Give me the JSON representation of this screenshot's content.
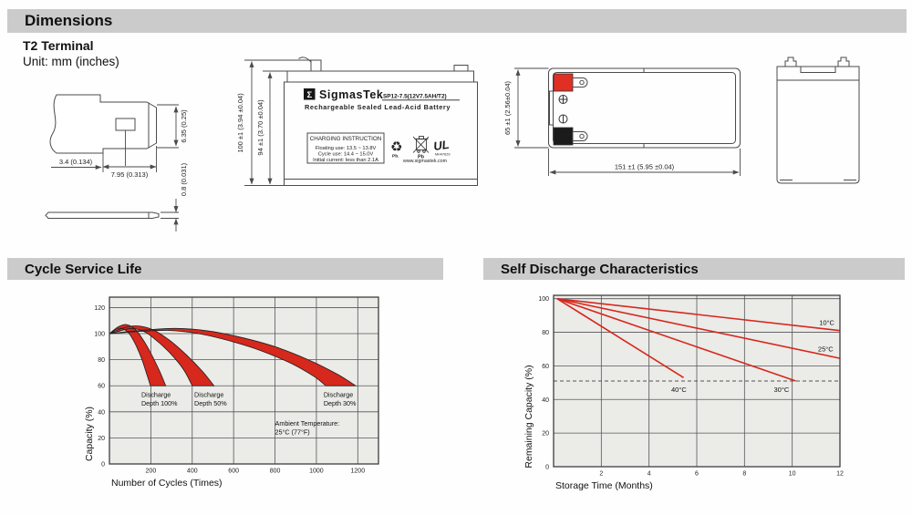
{
  "page": {
    "header": "Dimensions",
    "terminal_type": "T2 Terminal",
    "unit_note": "Unit: mm (inches)",
    "section1_header": "Cycle Service Life",
    "section2_header": "Self Discharge Characteristics",
    "accent_red": "#d6281c",
    "header_bar_gray": "#cbcbcb"
  },
  "drawings": {
    "terminal": {
      "dim_offset": "3.4 (0.134)",
      "dim_width": "7.95 (0.313)",
      "dim_height": "6.35 (0.25)",
      "dim_thickness": "0.8 (0.031)"
    },
    "front_view": {
      "dim_total_height": "100 ±1 (3.94 ±0.04)",
      "dim_case_height": "94 ±1 (3.70 ±0.04)",
      "brand_sigma": "Σ",
      "brand": "SigmasTek",
      "model": "SP12-7.5(12V7.5AH/T2)",
      "subtitle": "Rechargeable Sealed Lead-Acid Battery",
      "charging_title": "CHARGING INSTRUCTION",
      "charging_line1": "Floating use: 13.5 ~ 13.8V",
      "charging_line2": "Cycle use: 14.4 ~ 15.0V",
      "charging_line3": "Initial current: less than 2.1A",
      "recycle_pb": "Pb.",
      "bin_pb": "Pb",
      "ul_text": "UL",
      "ul_number": "MH47629",
      "website": "www.sigmastek.com",
      "recycle_symbol": "♻"
    },
    "top_view": {
      "dim_length": "151 ±1 (5.95 ±0.04)",
      "dim_depth": "65 ±1 (2.56±0.04)"
    }
  },
  "chart_data": [
    {
      "type": "area",
      "title": "Cycle Service Life",
      "xlabel": "Number of Cycles (Times)",
      "ylabel": "Capacity (%)",
      "xlim": [
        0,
        1300
      ],
      "ylim": [
        0,
        128
      ],
      "xticks": [
        200,
        400,
        600,
        800,
        1000,
        1200
      ],
      "yticks": [
        0,
        20,
        40,
        60,
        80,
        100,
        120
      ],
      "grid": true,
      "plot_bg": "#ebebe8",
      "band_color": "#d6281c",
      "bands": [
        {
          "name": "Discharge Depth 100%",
          "upper": [
            [
              0,
              100
            ],
            [
              40,
              105
            ],
            [
              80,
              107
            ],
            [
              120,
              104
            ],
            [
              160,
              96
            ],
            [
              200,
              85
            ],
            [
              240,
              72
            ],
            [
              272,
              60
            ]
          ],
          "lower": [
            [
              0,
              100
            ],
            [
              30,
              103
            ],
            [
              60,
              104
            ],
            [
              95,
              100
            ],
            [
              125,
              92
            ],
            [
              155,
              81
            ],
            [
              178,
              70
            ],
            [
              198,
              60
            ]
          ]
        },
        {
          "name": "Discharge Depth 50%",
          "upper": [
            [
              0,
              100
            ],
            [
              60,
              104
            ],
            [
              130,
              106
            ],
            [
              210,
              103
            ],
            [
              290,
              95
            ],
            [
              370,
              84
            ],
            [
              450,
              71
            ],
            [
              505,
              60
            ]
          ],
          "lower": [
            [
              0,
              100
            ],
            [
              50,
              102
            ],
            [
              110,
              104
            ],
            [
              175,
              101
            ],
            [
              240,
              93
            ],
            [
              305,
              83
            ],
            [
              360,
              72
            ],
            [
              400,
              60
            ]
          ]
        },
        {
          "name": "Discharge Depth 30%",
          "upper": [
            [
              0,
              100
            ],
            [
              150,
              102.5
            ],
            [
              320,
              104
            ],
            [
              480,
              102
            ],
            [
              640,
              97
            ],
            [
              800,
              90
            ],
            [
              960,
              80
            ],
            [
              1100,
              69
            ],
            [
              1190,
              60
            ]
          ],
          "lower": [
            [
              0,
              100
            ],
            [
              130,
              101.5
            ],
            [
              280,
              102.5
            ],
            [
              430,
              100
            ],
            [
              580,
              94.5
            ],
            [
              730,
              87
            ],
            [
              880,
              77
            ],
            [
              990,
              67
            ],
            [
              1045,
              60
            ]
          ]
        }
      ],
      "annotations": [
        {
          "x": 154,
          "y": 51.5,
          "align": "left",
          "lines": [
            "Discharge",
            "Depth 100%"
          ]
        },
        {
          "x": 410,
          "y": 51.5,
          "align": "left",
          "lines": [
            "Discharge",
            "Depth 50%"
          ]
        },
        {
          "x": 1035,
          "y": 51.5,
          "align": "left",
          "lines": [
            "Discharge",
            "Depth 30%"
          ]
        },
        {
          "x": 800,
          "y": 29.5,
          "align": "left",
          "lines": [
            "Ambient Temperature:",
            "25°C (77°F)"
          ]
        }
      ]
    },
    {
      "type": "line",
      "title": "Self Discharge Characteristics",
      "xlabel": "Storage Time (Months)",
      "ylabel": "Remaining Capacity (%)",
      "xlim": [
        0,
        12
      ],
      "ylim": [
        0,
        102
      ],
      "xticks": [
        2,
        4,
        6,
        8,
        10,
        12
      ],
      "yticks": [
        0,
        20,
        40,
        60,
        80,
        100
      ],
      "grid": true,
      "plot_bg": "#ebebe8",
      "line_color": "#d6281c",
      "dashed_guide_y": 51,
      "series": [
        {
          "name": "10°C",
          "points": [
            [
              0.15,
              100
            ],
            [
              12,
              81
            ]
          ],
          "label": {
            "x": 11.45,
            "y": 84.5
          }
        },
        {
          "name": "25°C",
          "points": [
            [
              0.15,
              100
            ],
            [
              12,
              64.5
            ]
          ],
          "label": {
            "x": 11.4,
            "y": 68.5
          }
        },
        {
          "name": "30°C",
          "points": [
            [
              0.15,
              100
            ],
            [
              10.15,
              51
            ]
          ],
          "label": {
            "x": 9.55,
            "y": 44.5
          }
        },
        {
          "name": "40°C",
          "points": [
            [
              0.15,
              100
            ],
            [
              5.45,
              53
            ]
          ],
          "label": {
            "x": 5.25,
            "y": 44.5
          }
        }
      ]
    }
  ]
}
